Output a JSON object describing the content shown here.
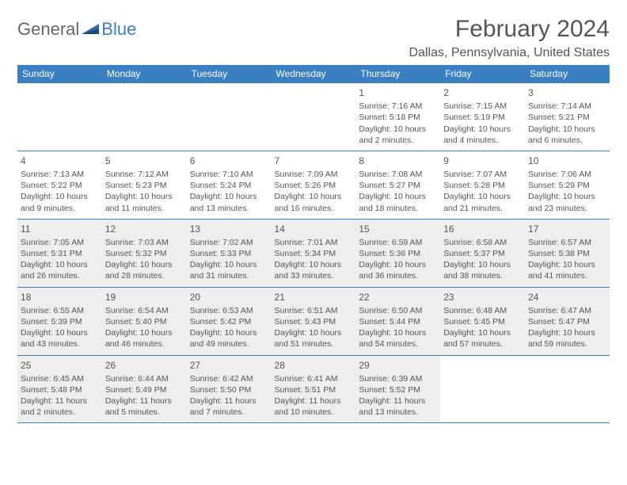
{
  "logo": {
    "general": "General",
    "blue": "Blue"
  },
  "title": "February 2024",
  "location": "Dallas, Pennsylvania, United States",
  "colors": {
    "accent": "#3a7fc2",
    "shaded": "#eeeeee",
    "text": "#555555",
    "bg": "#ffffff"
  },
  "day_headers": [
    "Sunday",
    "Monday",
    "Tuesday",
    "Wednesday",
    "Thursday",
    "Friday",
    "Saturday"
  ],
  "weeks": [
    [
      {
        "blank": true
      },
      {
        "blank": true
      },
      {
        "blank": true
      },
      {
        "blank": true
      },
      {
        "day": "1",
        "sunrise": "Sunrise: 7:16 AM",
        "sunset": "Sunset: 5:18 PM",
        "daylight": "Daylight: 10 hours and 2 minutes."
      },
      {
        "day": "2",
        "sunrise": "Sunrise: 7:15 AM",
        "sunset": "Sunset: 5:19 PM",
        "daylight": "Daylight: 10 hours and 4 minutes."
      },
      {
        "day": "3",
        "sunrise": "Sunrise: 7:14 AM",
        "sunset": "Sunset: 5:21 PM",
        "daylight": "Daylight: 10 hours and 6 minutes."
      }
    ],
    [
      {
        "day": "4",
        "sunrise": "Sunrise: 7:13 AM",
        "sunset": "Sunset: 5:22 PM",
        "daylight": "Daylight: 10 hours and 9 minutes."
      },
      {
        "day": "5",
        "sunrise": "Sunrise: 7:12 AM",
        "sunset": "Sunset: 5:23 PM",
        "daylight": "Daylight: 10 hours and 11 minutes."
      },
      {
        "day": "6",
        "sunrise": "Sunrise: 7:10 AM",
        "sunset": "Sunset: 5:24 PM",
        "daylight": "Daylight: 10 hours and 13 minutes."
      },
      {
        "day": "7",
        "sunrise": "Sunrise: 7:09 AM",
        "sunset": "Sunset: 5:26 PM",
        "daylight": "Daylight: 10 hours and 16 minutes."
      },
      {
        "day": "8",
        "sunrise": "Sunrise: 7:08 AM",
        "sunset": "Sunset: 5:27 PM",
        "daylight": "Daylight: 10 hours and 18 minutes."
      },
      {
        "day": "9",
        "sunrise": "Sunrise: 7:07 AM",
        "sunset": "Sunset: 5:28 PM",
        "daylight": "Daylight: 10 hours and 21 minutes."
      },
      {
        "day": "10",
        "sunrise": "Sunrise: 7:06 AM",
        "sunset": "Sunset: 5:29 PM",
        "daylight": "Daylight: 10 hours and 23 minutes."
      }
    ],
    [
      {
        "day": "11",
        "sunrise": "Sunrise: 7:05 AM",
        "sunset": "Sunset: 5:31 PM",
        "daylight": "Daylight: 10 hours and 26 minutes.",
        "shaded": true
      },
      {
        "day": "12",
        "sunrise": "Sunrise: 7:03 AM",
        "sunset": "Sunset: 5:32 PM",
        "daylight": "Daylight: 10 hours and 28 minutes.",
        "shaded": true
      },
      {
        "day": "13",
        "sunrise": "Sunrise: 7:02 AM",
        "sunset": "Sunset: 5:33 PM",
        "daylight": "Daylight: 10 hours and 31 minutes.",
        "shaded": true
      },
      {
        "day": "14",
        "sunrise": "Sunrise: 7:01 AM",
        "sunset": "Sunset: 5:34 PM",
        "daylight": "Daylight: 10 hours and 33 minutes.",
        "shaded": true
      },
      {
        "day": "15",
        "sunrise": "Sunrise: 6:59 AM",
        "sunset": "Sunset: 5:36 PM",
        "daylight": "Daylight: 10 hours and 36 minutes.",
        "shaded": true
      },
      {
        "day": "16",
        "sunrise": "Sunrise: 6:58 AM",
        "sunset": "Sunset: 5:37 PM",
        "daylight": "Daylight: 10 hours and 38 minutes.",
        "shaded": true
      },
      {
        "day": "17",
        "sunrise": "Sunrise: 6:57 AM",
        "sunset": "Sunset: 5:38 PM",
        "daylight": "Daylight: 10 hours and 41 minutes.",
        "shaded": true
      }
    ],
    [
      {
        "day": "18",
        "sunrise": "Sunrise: 6:55 AM",
        "sunset": "Sunset: 5:39 PM",
        "daylight": "Daylight: 10 hours and 43 minutes.",
        "shaded": true
      },
      {
        "day": "19",
        "sunrise": "Sunrise: 6:54 AM",
        "sunset": "Sunset: 5:40 PM",
        "daylight": "Daylight: 10 hours and 46 minutes.",
        "shaded": true
      },
      {
        "day": "20",
        "sunrise": "Sunrise: 6:53 AM",
        "sunset": "Sunset: 5:42 PM",
        "daylight": "Daylight: 10 hours and 49 minutes.",
        "shaded": true
      },
      {
        "day": "21",
        "sunrise": "Sunrise: 6:51 AM",
        "sunset": "Sunset: 5:43 PM",
        "daylight": "Daylight: 10 hours and 51 minutes.",
        "shaded": true
      },
      {
        "day": "22",
        "sunrise": "Sunrise: 6:50 AM",
        "sunset": "Sunset: 5:44 PM",
        "daylight": "Daylight: 10 hours and 54 minutes.",
        "shaded": true
      },
      {
        "day": "23",
        "sunrise": "Sunrise: 6:48 AM",
        "sunset": "Sunset: 5:45 PM",
        "daylight": "Daylight: 10 hours and 57 minutes.",
        "shaded": true
      },
      {
        "day": "24",
        "sunrise": "Sunrise: 6:47 AM",
        "sunset": "Sunset: 5:47 PM",
        "daylight": "Daylight: 10 hours and 59 minutes.",
        "shaded": true
      }
    ],
    [
      {
        "day": "25",
        "sunrise": "Sunrise: 6:45 AM",
        "sunset": "Sunset: 5:48 PM",
        "daylight": "Daylight: 11 hours and 2 minutes.",
        "shaded": true
      },
      {
        "day": "26",
        "sunrise": "Sunrise: 6:44 AM",
        "sunset": "Sunset: 5:49 PM",
        "daylight": "Daylight: 11 hours and 5 minutes.",
        "shaded": true
      },
      {
        "day": "27",
        "sunrise": "Sunrise: 6:42 AM",
        "sunset": "Sunset: 5:50 PM",
        "daylight": "Daylight: 11 hours and 7 minutes.",
        "shaded": true
      },
      {
        "day": "28",
        "sunrise": "Sunrise: 6:41 AM",
        "sunset": "Sunset: 5:51 PM",
        "daylight": "Daylight: 11 hours and 10 minutes.",
        "shaded": true
      },
      {
        "day": "29",
        "sunrise": "Sunrise: 6:39 AM",
        "sunset": "Sunset: 5:52 PM",
        "daylight": "Daylight: 11 hours and 13 minutes.",
        "shaded": true
      },
      {
        "blank": true
      },
      {
        "blank": true
      }
    ]
  ]
}
